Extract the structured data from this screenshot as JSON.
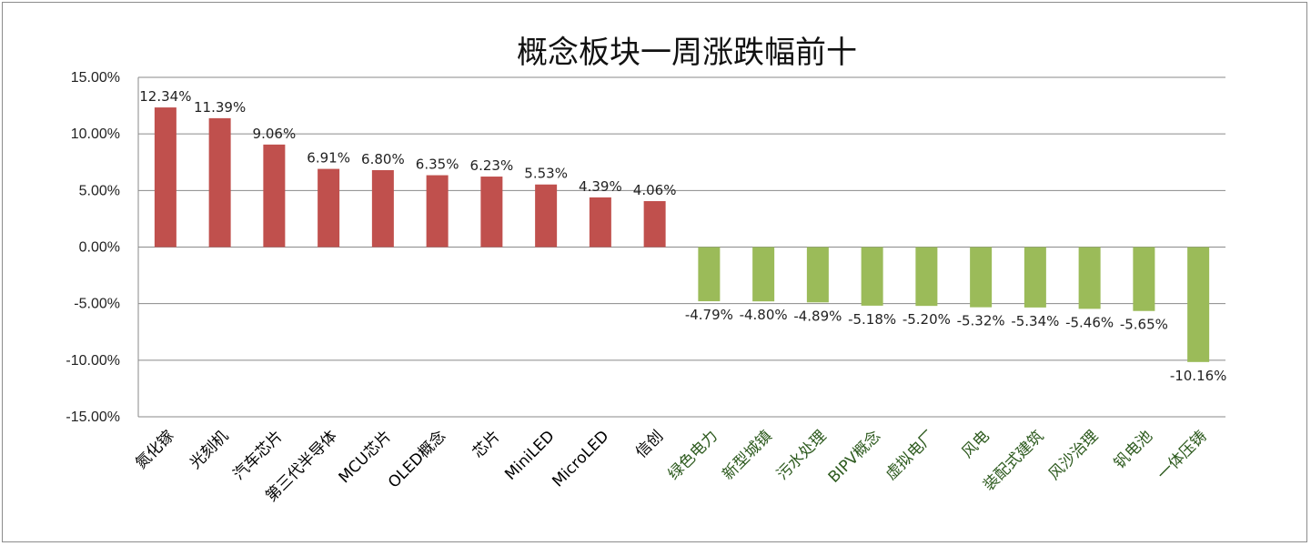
{
  "chart_data": {
    "type": "bar",
    "title": "概念板块一周涨跌幅前十",
    "xlabel": "",
    "ylabel": "",
    "ylim": [
      -15,
      15
    ],
    "yticks": [
      "15.00%",
      "10.00%",
      "5.00%",
      "0.00%",
      "-5.00%",
      "-10.00%",
      "-15.00%"
    ],
    "grid": true,
    "legend": "none",
    "categories": [
      "氮化镓",
      "光刻机",
      "汽车芯片",
      "第三代半导体",
      "MCU芯片",
      "OLED概念",
      "芯片",
      "MiniLED",
      "MicroLED",
      "信创",
      "绿色电力",
      "新型城镇",
      "污水处理",
      "BIPV概念",
      "虚拟电厂",
      "风电",
      "装配式建筑",
      "风沙治理",
      "钒电池",
      "一体压铸"
    ],
    "values": [
      12.34,
      11.39,
      9.06,
      6.91,
      6.8,
      6.35,
      6.23,
      5.53,
      4.39,
      4.06,
      -4.79,
      -4.8,
      -4.89,
      -5.18,
      -5.2,
      -5.32,
      -5.34,
      -5.46,
      -5.65,
      -10.16
    ],
    "data_labels": [
      "12.34%",
      "11.39%",
      "9.06%",
      "6.91%",
      "6.80%",
      "6.35%",
      "6.23%",
      "5.53%",
      "4.39%",
      "4.06%",
      "-4.79%",
      "-4.80%",
      "-4.89%",
      "-5.18%",
      "-5.20%",
      "-5.32%",
      "-5.34%",
      "-5.46%",
      "-5.65%",
      "-10.16%"
    ],
    "colors": {
      "positive": "#c0504d",
      "negative": "#9bbb59",
      "label_positive": "#000000",
      "label_negative": "#2d5a1e",
      "grid": "#8a8a8a"
    }
  }
}
